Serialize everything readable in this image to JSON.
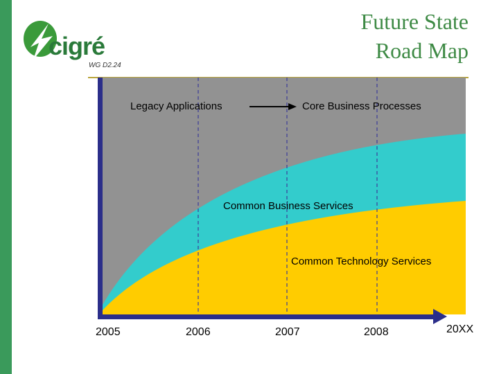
{
  "header": {
    "logo_text": "cigré",
    "working_group": "WG D2.24",
    "title_line1": "Future State",
    "title_line2": "Road Map"
  },
  "diagram": {
    "labels": {
      "legacy": "Legacy Applications",
      "core": "Core Business Processes",
      "business_services": "Common Business Services",
      "technology_services": "Common Technology Services"
    },
    "years": [
      "2005",
      "2006",
      "2007",
      "2008",
      "20XX"
    ],
    "colors": {
      "legacy_region": "#929292",
      "business_region": "#33cccc",
      "technology_region": "#ffcc00",
      "axis": "#2b2e8a",
      "dashed_lines": "#3d3d9a"
    }
  }
}
